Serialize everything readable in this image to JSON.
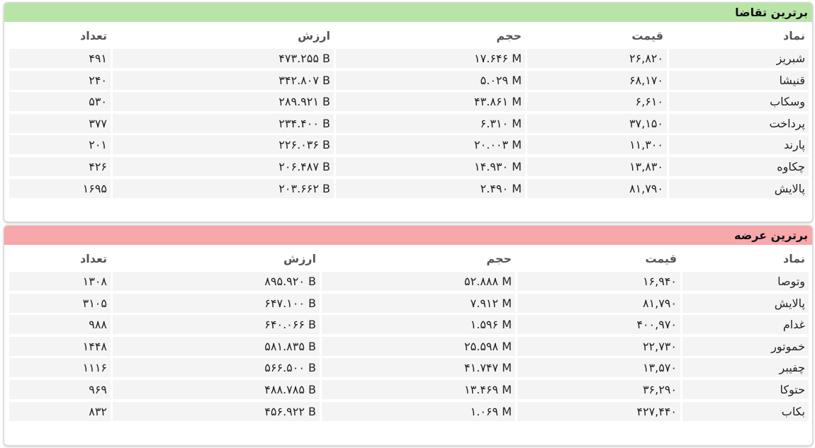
{
  "panels": [
    {
      "title": "برترین تقاضا",
      "columns": [
        "نماد",
        "قیمت",
        "حجم",
        "ارزش",
        "تعداد"
      ],
      "rows": [
        [
          "شبریز",
          "۲۶,۸۲۰",
          "۱۷.۶۴۶ M",
          "۴۷۳.۲۵۵ B",
          "۴۹۱"
        ],
        [
          "قنیشا",
          "۶۸,۱۷۰",
          "۵.۰۲۹ M",
          "۳۴۲.۸۰۷ B",
          "۲۴۰"
        ],
        [
          "وسکاب",
          "۶,۶۱۰",
          "۴۳.۸۶۱ M",
          "۲۸۹.۹۲۱ B",
          "۵۳۰"
        ],
        [
          "پرداخت",
          "۳۷,۱۵۰",
          "۶.۳۱۰ M",
          "۲۳۴.۴۰۰ B",
          "۳۷۷"
        ],
        [
          "پارند",
          "۱۱,۳۰۰",
          "۲۰.۰۰۳ M",
          "۲۲۶.۰۳۶ B",
          "۲۰۱"
        ],
        [
          "چکاوه",
          "۱۳,۸۳۰",
          "۱۴.۹۳۰ M",
          "۲۰۶.۴۸۷ B",
          "۴۲۶"
        ],
        [
          "پالایش",
          "۸۱,۷۹۰",
          "۲.۴۹۰ M",
          "۲۰۳.۶۶۲ B",
          "۱۶۹۵"
        ]
      ]
    },
    {
      "title": "برترین عرضه",
      "columns": [
        "نماد",
        "قیمت",
        "حجم",
        "ارزش",
        "تعداد"
      ],
      "rows": [
        [
          "وتوصا",
          "۱۶,۹۴۰",
          "۵۲.۸۸۸ M",
          "۸۹۵.۹۲۰ B",
          "۱۳۰۸"
        ],
        [
          "پالایش",
          "۸۱,۷۹۰",
          "۷.۹۱۲ M",
          "۶۴۷.۱۰۰ B",
          "۳۱۰۵"
        ],
        [
          "غدام",
          "۴۰۰,۹۷۰",
          "۱.۵۹۶ M",
          "۶۴۰.۰۶۶ B",
          "۹۸۸"
        ],
        [
          "خموتور",
          "۲۲,۷۳۰",
          "۲۵.۵۹۸ M",
          "۵۸۱.۸۳۵ B",
          "۱۴۴۸"
        ],
        [
          "چفیبر",
          "۱۳,۵۷۰",
          "۴۱.۷۴۷ M",
          "۵۶۶.۵۰۰ B",
          "۱۱۱۶"
        ],
        [
          "حتوکا",
          "۳۶,۲۹۰",
          "۱۳.۴۶۹ M",
          "۴۸۸.۷۸۵ B",
          "۹۶۹"
        ],
        [
          "بکاب",
          "۴۲۷,۴۴۰",
          "۱.۰۶۹ M",
          "۴۵۶.۹۲۲ B",
          "۸۳۲"
        ]
      ]
    }
  ]
}
